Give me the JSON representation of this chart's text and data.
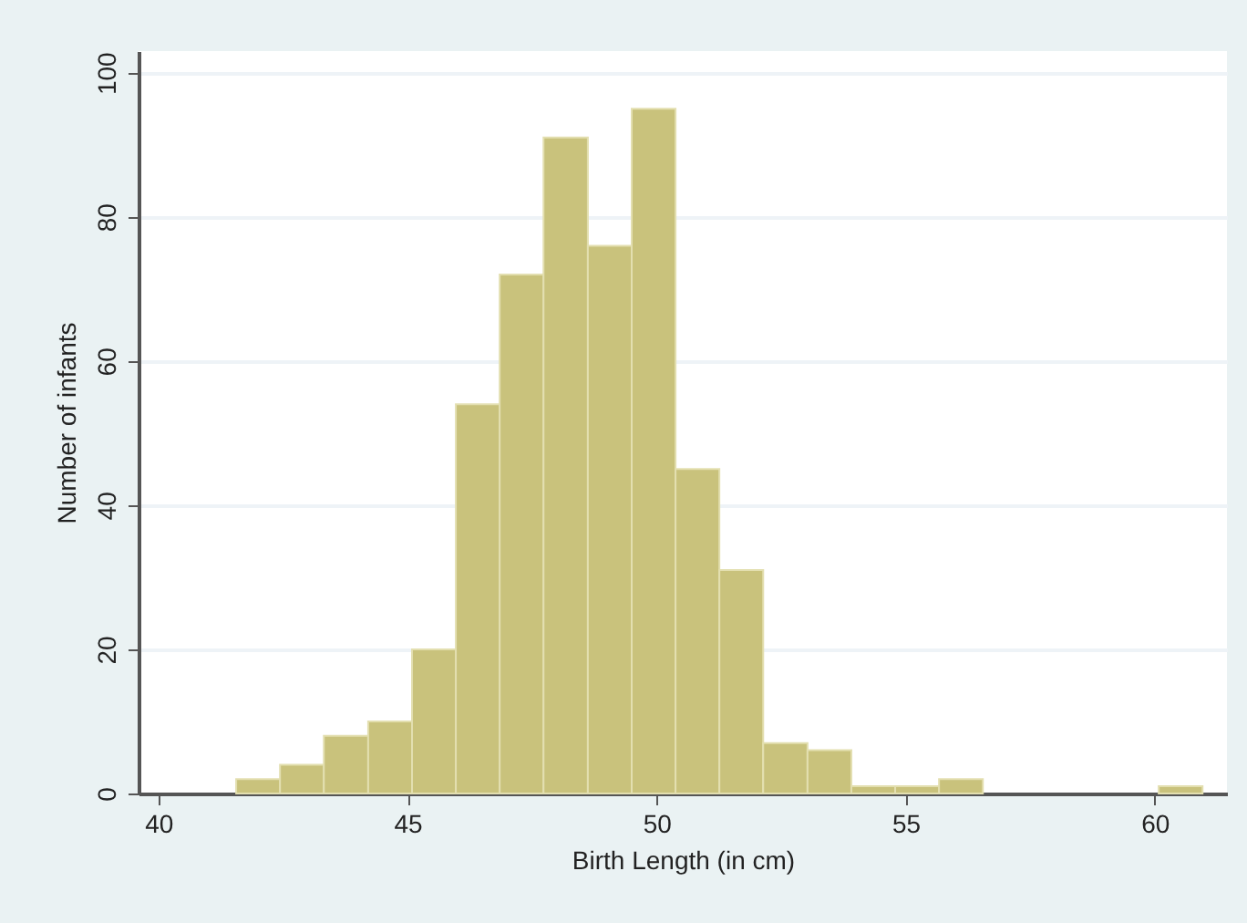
{
  "chart_data": {
    "type": "histogram",
    "xlabel": "Birth Length (in cm)",
    "ylabel": "Number of infants",
    "bins": [
      41.56,
      42.44,
      43.32,
      44.21,
      45.09,
      45.97,
      46.85,
      47.73,
      48.62,
      49.5,
      50.38,
      51.26,
      52.14,
      53.03,
      53.91,
      54.79,
      55.67,
      56.55,
      60.08,
      60.96
    ],
    "values": [
      2,
      4,
      8,
      10,
      20,
      54,
      72,
      91,
      76,
      95,
      45,
      31,
      7,
      6,
      1,
      1,
      2,
      0,
      1
    ],
    "color": "#c9c27c",
    "xlim": [
      39.6,
      61.45
    ],
    "xticks": [
      40,
      45,
      50,
      55,
      60
    ],
    "ylim": [
      0,
      103
    ],
    "yticks": [
      0,
      20,
      40,
      60,
      80,
      100
    ],
    "grid": "y"
  }
}
